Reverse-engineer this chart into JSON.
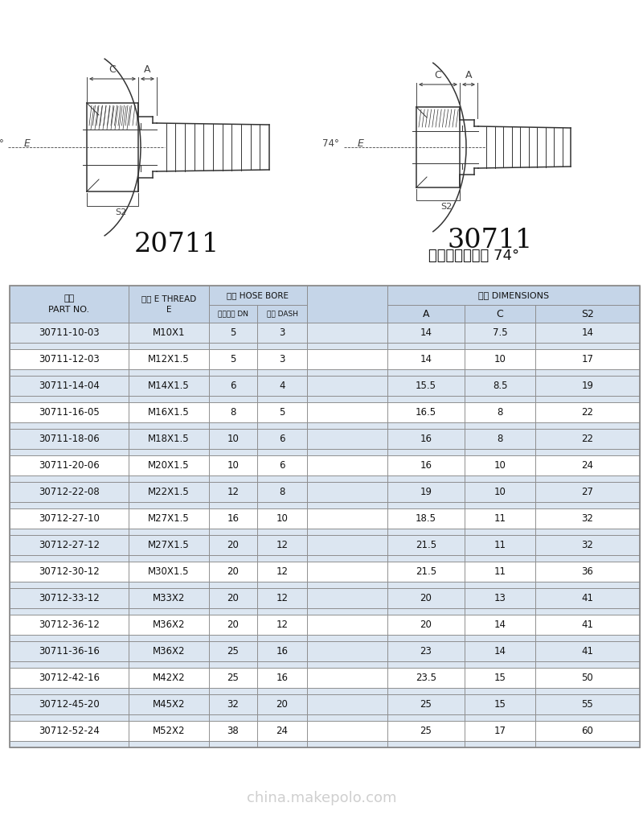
{
  "title_text": "国标公制内螺纹 74°",
  "label_20711": "20711",
  "label_30711": "30711",
  "bg_color": "#ffffff",
  "table_header_bg": "#c5d5e8",
  "table_row_bg_odd": "#dce6f1",
  "table_row_bg_even": "#ffffff",
  "table_border_color": "#888888",
  "data_rows": [
    [
      "30711-10-03",
      "M10X1",
      "5",
      "3",
      "14",
      "7.5",
      "14"
    ],
    [
      "30711-12-03",
      "M12X1.5",
      "5",
      "3",
      "14",
      "10",
      "17"
    ],
    [
      "30711-14-04",
      "M14X1.5",
      "6",
      "4",
      "15.5",
      "8.5",
      "19"
    ],
    [
      "30711-16-05",
      "M16X1.5",
      "8",
      "5",
      "16.5",
      "8",
      "22"
    ],
    [
      "30711-18-06",
      "M18X1.5",
      "10",
      "6",
      "16",
      "8",
      "22"
    ],
    [
      "30711-20-06",
      "M20X1.5",
      "10",
      "6",
      "16",
      "10",
      "24"
    ],
    [
      "30712-22-08",
      "M22X1.5",
      "12",
      "8",
      "19",
      "10",
      "27"
    ],
    [
      "30712-27-10",
      "M27X1.5",
      "16",
      "10",
      "18.5",
      "11",
      "32"
    ],
    [
      "30712-27-12",
      "M27X1.5",
      "20",
      "12",
      "21.5",
      "11",
      "32"
    ],
    [
      "30712-30-12",
      "M30X1.5",
      "20",
      "12",
      "21.5",
      "11",
      "36"
    ],
    [
      "30712-33-12",
      "M33X2",
      "20",
      "12",
      "20",
      "13",
      "41"
    ],
    [
      "30712-36-12",
      "M36X2",
      "20",
      "12",
      "20",
      "14",
      "41"
    ],
    [
      "30711-36-16",
      "M36X2",
      "25",
      "16",
      "23",
      "14",
      "41"
    ],
    [
      "30712-42-16",
      "M42X2",
      "25",
      "16",
      "23.5",
      "15",
      "50"
    ],
    [
      "30712-45-20",
      "M45X2",
      "32",
      "20",
      "25",
      "15",
      "55"
    ],
    [
      "30712-52-24",
      "M52X2",
      "38",
      "24",
      "25",
      "17",
      "60"
    ]
  ],
  "diag_color": "#333333",
  "dim_color": "#444444"
}
